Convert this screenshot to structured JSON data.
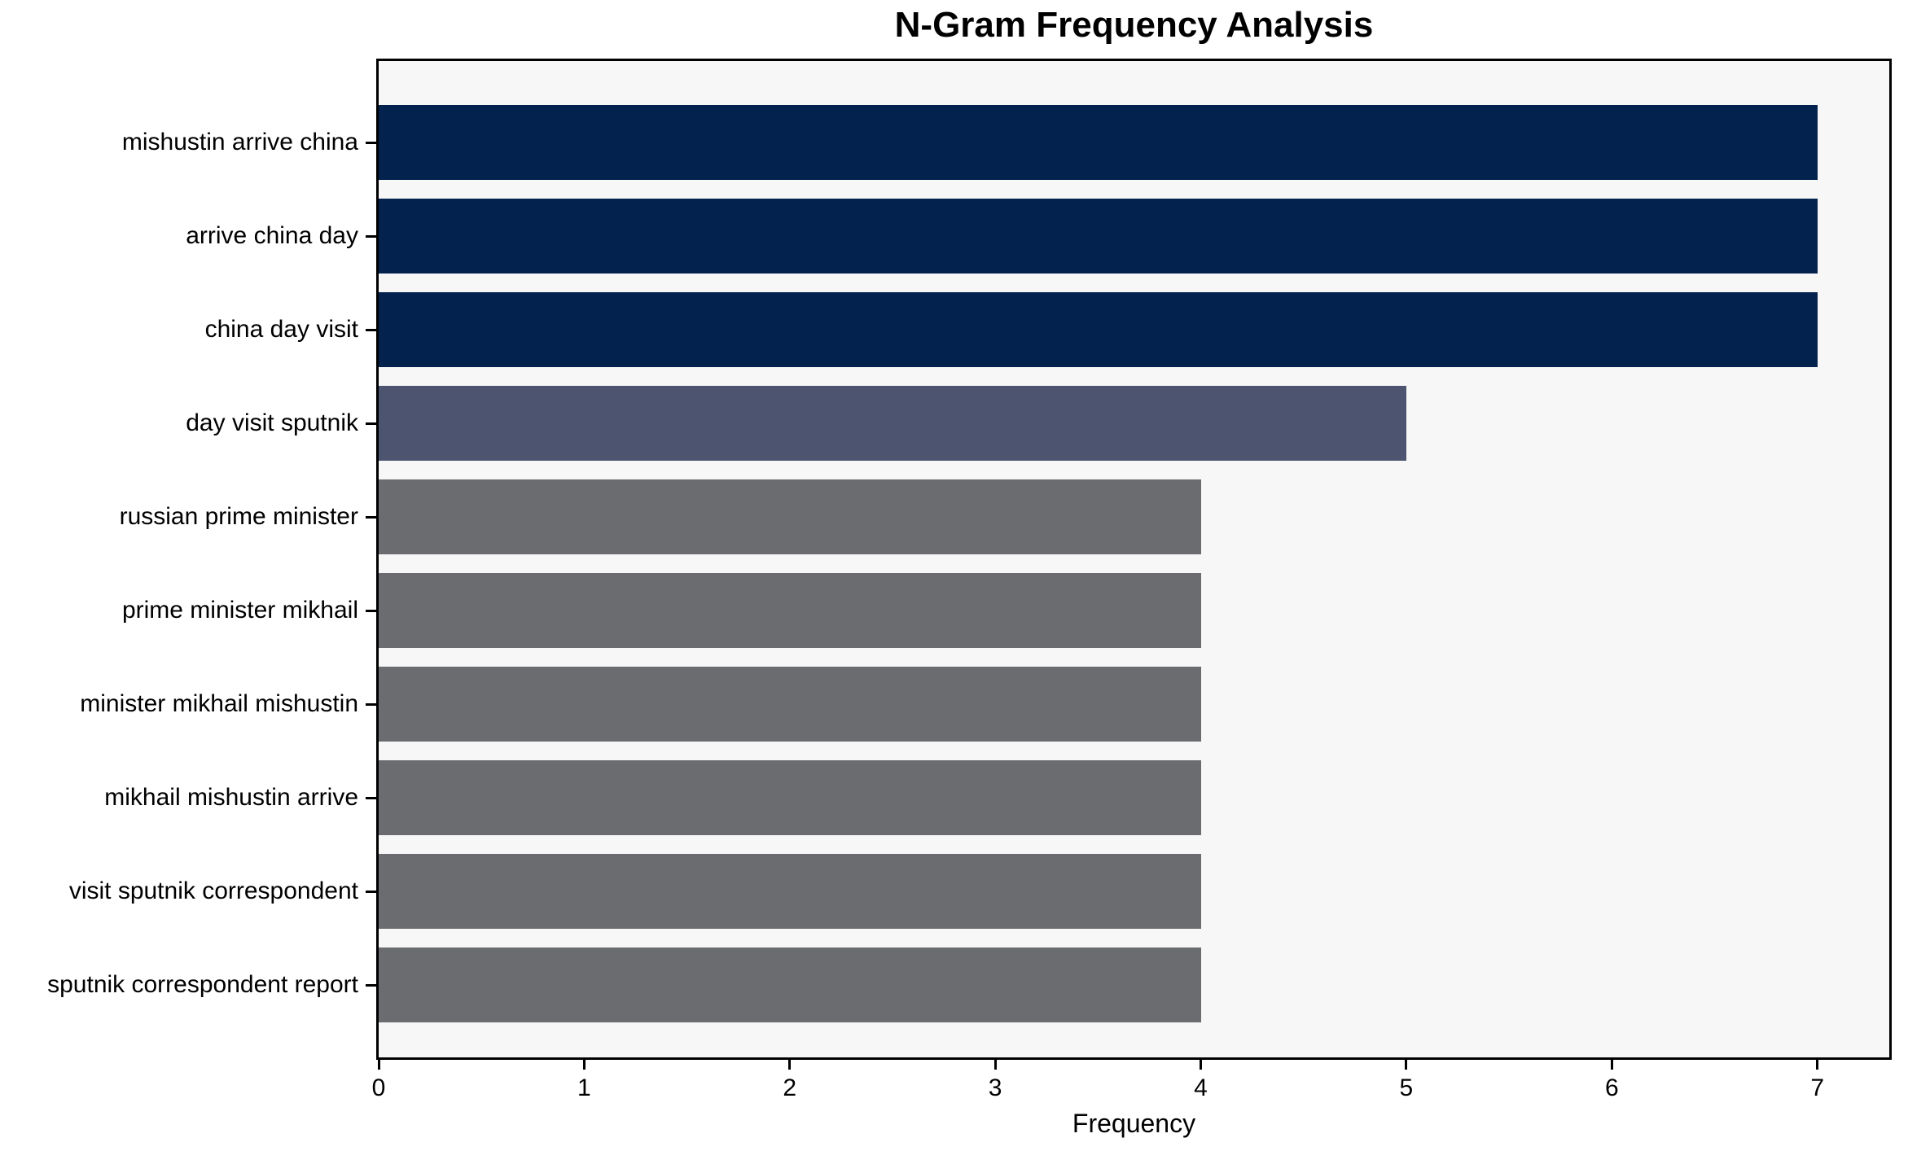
{
  "title": "N-Gram Frequency Analysis",
  "chart_data": {
    "type": "bar",
    "orientation": "horizontal",
    "title": "N-Gram Frequency Analysis",
    "xlabel": "Frequency",
    "ylabel": "",
    "categories": [
      "mishustin arrive china",
      "arrive china day",
      "china day visit",
      "day visit sputnik",
      "russian prime minister",
      "prime minister mikhail",
      "minister mikhail mishustin",
      "mikhail mishustin arrive",
      "visit sputnik correspondent",
      "sputnik correspondent report"
    ],
    "values": [
      7,
      7,
      7,
      5,
      4,
      4,
      4,
      4,
      4,
      4
    ],
    "bar_colors": [
      "#03234e",
      "#03234e",
      "#03234e",
      "#4c5470",
      "#6b6c70",
      "#6b6c70",
      "#6b6c70",
      "#6b6c70",
      "#6b6c70",
      "#6b6c70"
    ],
    "x_ticks": [
      0,
      1,
      2,
      3,
      4,
      5,
      6,
      7
    ],
    "xlim": [
      0,
      7.35
    ],
    "grid": false,
    "legend": null,
    "colors": {
      "bar_high": "#03234e",
      "bar_mid": "#4c5470",
      "bar_low": "#6b6c70",
      "plot_background": "#f7f7f8",
      "figure_background": "#ffffff",
      "axis": "#000000",
      "text": "#000000"
    }
  }
}
